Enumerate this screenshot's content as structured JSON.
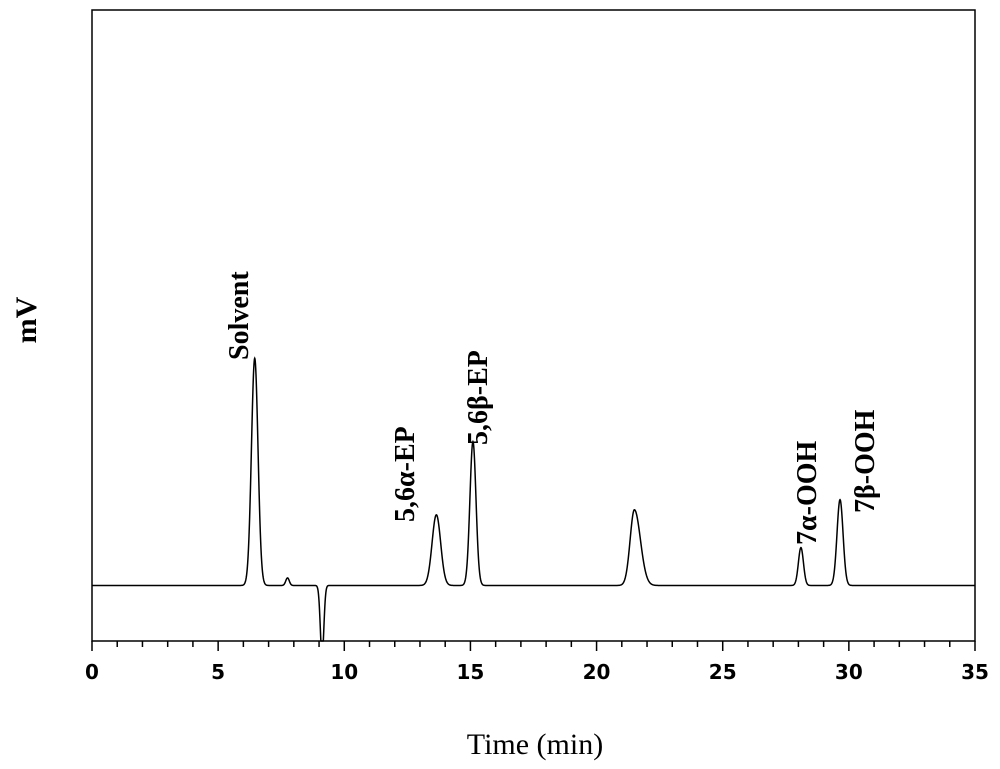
{
  "chart_data": {
    "type": "line",
    "title": "",
    "xlabel": "Time (min)",
    "ylabel": "mV",
    "xlim": [
      0,
      35
    ],
    "ylim": [
      -0.22,
      2.28
    ],
    "x_ticks": [
      0,
      5,
      10,
      15,
      20,
      25,
      30,
      35
    ],
    "x_minor_step": 1,
    "grid": false,
    "y_ticks_shown": false,
    "baseline": 0,
    "series": [
      {
        "color": "#000000",
        "peaks": [
          {
            "t": 6.45,
            "height": 0.9,
            "width": 0.13
          },
          {
            "t": 7.75,
            "height": 0.03,
            "width": 0.07
          },
          {
            "t": 9.12,
            "height": -0.28,
            "width": 0.07
          },
          {
            "t": 13.65,
            "height": 0.28,
            "width": 0.17
          },
          {
            "t": 15.1,
            "height": 0.57,
            "width": 0.12
          },
          {
            "t": 21.5,
            "height": 0.3,
            "width": 0.17,
            "tail": 0.4
          },
          {
            "t": 28.1,
            "height": 0.15,
            "width": 0.1
          },
          {
            "t": 29.65,
            "height": 0.34,
            "width": 0.12
          }
        ]
      }
    ],
    "annotations": [
      {
        "text": "Solvent"
      },
      {
        "text": "5,6α-EP"
      },
      {
        "text": "5,6β-EP"
      },
      {
        "text": "7α-OOH"
      },
      {
        "text": "7β-OOH"
      }
    ]
  }
}
